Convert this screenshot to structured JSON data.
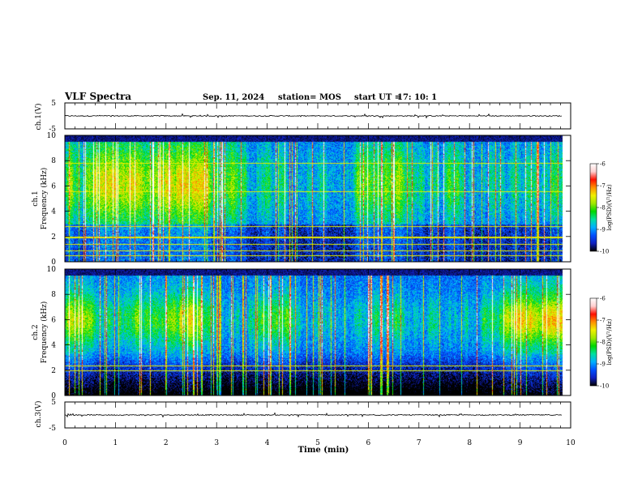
{
  "header": {
    "title": "VLF Spectra",
    "date": "Sep. 11, 2024",
    "station_label": "station= MOS",
    "start_label": "start UT =",
    "start_time": "17: 10: 1"
  },
  "chart_data": {
    "type": "heatmap",
    "x": {
      "label": "Time (min)",
      "range": [
        0,
        10
      ],
      "ticks": [
        "0",
        "1",
        "2",
        "3",
        "4",
        "5",
        "6",
        "7",
        "8",
        "9",
        "10"
      ],
      "data_end": 9.83
    },
    "waveform_panels": [
      {
        "id": "ch1-waveform",
        "ylabel": "ch.1(V)",
        "yrange": [
          -5,
          5
        ],
        "ticks": [
          "5",
          "-5"
        ],
        "baseline": 0
      },
      {
        "id": "ch3-waveform",
        "ylabel": "ch.3(V)",
        "yrange": [
          -5,
          5
        ],
        "ticks": [
          "5",
          "-5"
        ],
        "baseline": 0
      }
    ],
    "spectrogram_panels": [
      {
        "id": "ch1-spectrogram",
        "ylabel": "ch.1 Frequency (kHz)",
        "yrange": [
          0,
          10
        ],
        "ticks": [
          "0",
          "2",
          "4",
          "6",
          "8",
          "10"
        ],
        "band_top_khz": 9.5,
        "narrowband_lines_khz": [
          0.5,
          0.9,
          1.4,
          1.9,
          2.0,
          2.8,
          5.6,
          7.8
        ]
      },
      {
        "id": "ch2-spectrogram",
        "ylabel": "ch.2 Frequency (kHz)",
        "yrange": [
          0,
          10
        ],
        "ticks": [
          "0",
          "2",
          "4",
          "6",
          "8",
          "10"
        ],
        "band_top_khz": 9.5,
        "narrowband_lines_khz": [
          2.0,
          2.4
        ]
      }
    ],
    "colorbar": {
      "label": "log(PSD)(V²/Hz)",
      "range": [
        -10,
        -6
      ],
      "ticks": [
        "-6",
        "-7",
        "-8",
        "-9",
        "-10"
      ],
      "colormap": [
        "#000000",
        "#1020c0",
        "#0050ff",
        "#00b0ff",
        "#00e0a0",
        "#00d800",
        "#a0e800",
        "#f0f000",
        "#ff9000",
        "#ff1000",
        "#ffd0d0",
        "#ffffff"
      ]
    },
    "grid": false
  }
}
